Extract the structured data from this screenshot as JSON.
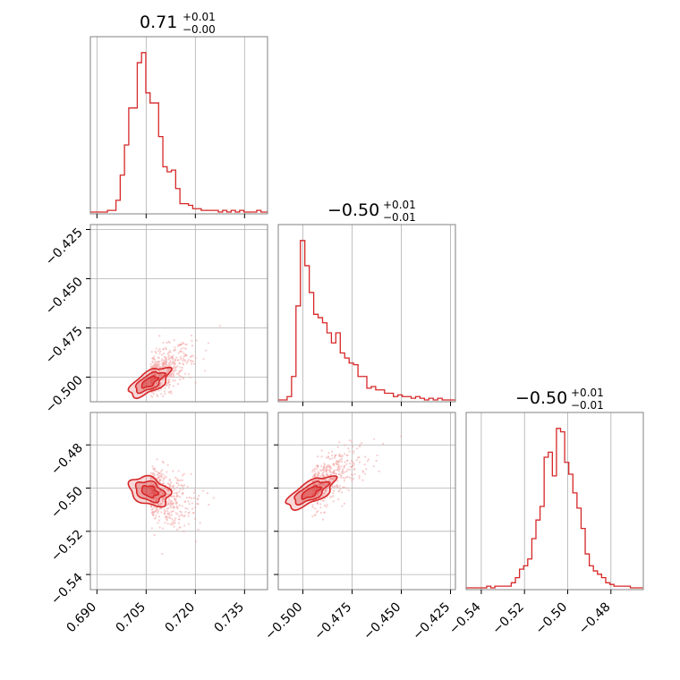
{
  "chart_data": {
    "type": "corner",
    "color": "#d62728",
    "grid": true,
    "parameters": [
      {
        "id": "p0",
        "title_value": "0.71",
        "title_plus": "+0.01",
        "title_minus": "−0.00",
        "range": [
          0.688,
          0.742
        ],
        "ticks": [
          0.69,
          0.705,
          0.72,
          0.735
        ],
        "tick_labels": [
          "0.690",
          "0.705",
          "0.720",
          "0.735"
        ]
      },
      {
        "id": "p1",
        "title_value": "−0.50",
        "title_plus": "+0.01",
        "title_minus": "−0.01",
        "range": [
          -0.5125,
          -0.4225
        ],
        "ticks": [
          -0.5,
          -0.475,
          -0.45,
          -0.425
        ],
        "tick_labels": [
          "−0.500",
          "−0.475",
          "−0.450",
          "−0.425"
        ]
      },
      {
        "id": "p2",
        "title_value": "−0.50",
        "title_plus": "+0.01",
        "title_minus": "−0.01",
        "range": [
          -0.547,
          -0.465
        ],
        "ticks": [
          -0.54,
          -0.52,
          -0.5,
          -0.48
        ],
        "tick_labels": [
          "−0.54",
          "−0.52",
          "−0.50",
          "−0.48"
        ]
      }
    ],
    "histograms": [
      {
        "param": 0,
        "bin_start": 0.688,
        "bin_width": 0.0013,
        "counts": [
          0,
          0,
          0,
          0,
          1,
          1,
          7,
          22,
          40,
          62,
          62,
          89,
          95,
          71,
          65,
          65,
          45,
          27,
          24,
          25,
          14,
          5,
          5,
          4,
          2,
          2,
          1,
          1,
          1,
          1,
          0,
          1,
          0,
          1,
          0,
          1,
          0,
          0,
          0,
          1,
          0,
          0
        ]
      },
      {
        "param": 1,
        "bin_start": -0.5125,
        "bin_width": 0.00225,
        "counts": [
          0,
          0,
          2,
          14,
          56,
          95,
          80,
          64,
          51,
          49,
          46,
          40,
          34,
          40,
          28,
          25,
          22,
          21,
          14,
          14,
          7,
          8,
          6,
          6,
          4,
          4,
          2,
          3,
          2,
          2,
          1,
          2,
          1,
          0,
          1,
          0,
          1,
          0,
          0,
          0
        ]
      },
      {
        "param": 2,
        "bin_start": -0.547,
        "bin_width": 0.0019,
        "counts": [
          0,
          0,
          0,
          0,
          0,
          1,
          0,
          1,
          1,
          1,
          1,
          3,
          6,
          11,
          13,
          17,
          29,
          40,
          48,
          77,
          80,
          66,
          94,
          92,
          74,
          67,
          56,
          47,
          35,
          20,
          13,
          10,
          8,
          6,
          3,
          2,
          1,
          1,
          1,
          1,
          0,
          0,
          0
        ]
      }
    ],
    "joint_2d": [
      {
        "x_param": 0,
        "y_param": 1,
        "center": [
          0.7045,
          -0.5025
        ],
        "spread": [
          0.0038,
          0.0055
        ],
        "correlation": 0.65
      },
      {
        "x_param": 0,
        "y_param": 2,
        "center": [
          0.7045,
          -0.5015
        ],
        "spread": [
          0.0038,
          0.005
        ],
        "correlation": -0.3
      },
      {
        "x_param": 1,
        "y_param": 2,
        "center": [
          -0.499,
          -0.502
        ],
        "spread": [
          0.0075,
          0.0055
        ],
        "correlation": 0.7
      }
    ],
    "contour_levels": [
      "outer",
      "middle",
      "inner"
    ]
  }
}
